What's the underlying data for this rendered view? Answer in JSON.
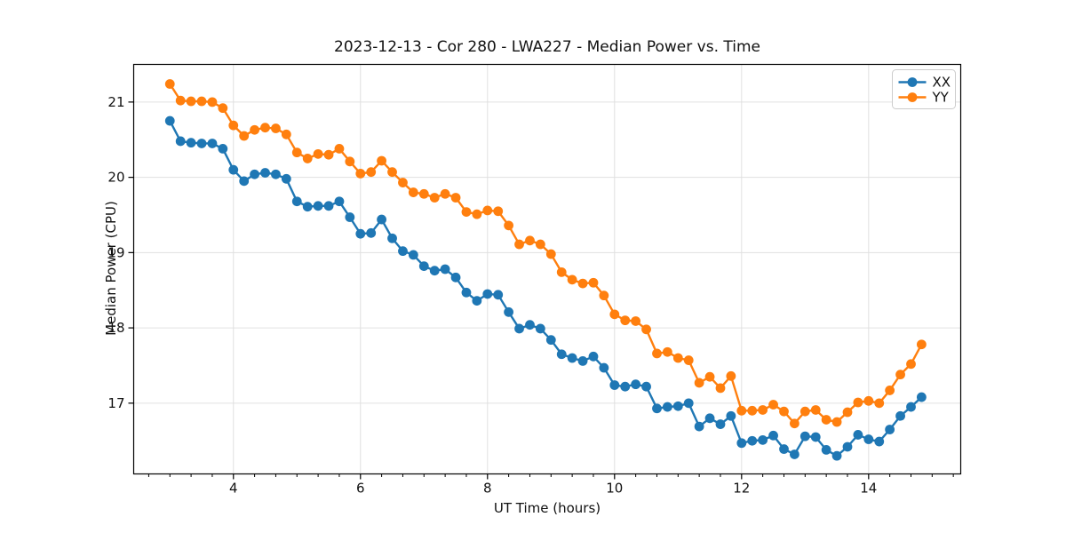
{
  "figure": {
    "background": "#ffffff"
  },
  "colors": {
    "series_xx": "#1f77b4",
    "series_yy": "#ff7f0e",
    "grid": "#e0e0e0",
    "spine": "#000000",
    "text": "#111111",
    "legend_border": "#cccccc",
    "legend_bg": "#ffffff"
  },
  "chart_data": {
    "type": "line",
    "title": "2023-12-13 - Cor 280 - LWA227 - Median Power vs. Time",
    "xlabel": "UT Time (hours)",
    "ylabel": "Median Power (CPU)",
    "xlim": [
      2.43,
      15.45
    ],
    "ylim": [
      16.06,
      21.5
    ],
    "xticks": [
      4,
      6,
      8,
      10,
      12,
      14
    ],
    "yticks": [
      17,
      18,
      19,
      20,
      21
    ],
    "x_minor_step": 0.3333,
    "grid": true,
    "legend_position": "upper right",
    "marker": "circle",
    "x": [
      3.0,
      3.167,
      3.333,
      3.5,
      3.667,
      3.833,
      4.0,
      4.167,
      4.333,
      4.5,
      4.667,
      4.833,
      5.0,
      5.167,
      5.333,
      5.5,
      5.667,
      5.833,
      6.0,
      6.167,
      6.333,
      6.5,
      6.667,
      6.833,
      7.0,
      7.167,
      7.333,
      7.5,
      7.667,
      7.833,
      8.0,
      8.167,
      8.333,
      8.5,
      8.667,
      8.833,
      9.0,
      9.167,
      9.333,
      9.5,
      9.667,
      9.833,
      10.0,
      10.167,
      10.333,
      10.5,
      10.667,
      10.833,
      11.0,
      11.167,
      11.333,
      11.5,
      11.667,
      11.833,
      12.0,
      12.167,
      12.333,
      12.5,
      12.667,
      12.833,
      13.0,
      13.167,
      13.333,
      13.5,
      13.667,
      13.833,
      14.0,
      14.167,
      14.333,
      14.5,
      14.667,
      14.833
    ],
    "series": [
      {
        "name": "XX",
        "color": "#1f77b4",
        "values": [
          20.75,
          20.48,
          20.46,
          20.45,
          20.45,
          20.38,
          20.1,
          19.95,
          20.04,
          20.06,
          20.04,
          19.98,
          19.68,
          19.61,
          19.62,
          19.62,
          19.68,
          19.47,
          19.25,
          19.26,
          19.44,
          19.19,
          19.02,
          18.97,
          18.82,
          18.76,
          18.78,
          18.67,
          18.47,
          18.36,
          18.45,
          18.44,
          18.21,
          17.99,
          18.04,
          17.99,
          17.84,
          17.65,
          17.6,
          17.56,
          17.62,
          17.47,
          17.24,
          17.22,
          17.25,
          17.22,
          16.93,
          16.95,
          16.96,
          17.0,
          16.69,
          16.8,
          16.72,
          16.83,
          16.47,
          16.5,
          16.51,
          16.57,
          16.39,
          16.32,
          16.56,
          16.55,
          16.38,
          16.3,
          16.42,
          16.58,
          16.52,
          16.49,
          16.65,
          16.83,
          16.95,
          17.08
        ]
      },
      {
        "name": "YY",
        "color": "#ff7f0e",
        "values": [
          21.24,
          21.02,
          21.01,
          21.01,
          21.0,
          20.92,
          20.69,
          20.55,
          20.63,
          20.66,
          20.65,
          20.57,
          20.33,
          20.25,
          20.31,
          20.3,
          20.38,
          20.21,
          20.05,
          20.07,
          20.22,
          20.07,
          19.93,
          19.8,
          19.78,
          19.73,
          19.78,
          19.73,
          19.54,
          19.51,
          19.56,
          19.55,
          19.36,
          19.11,
          19.16,
          19.11,
          18.98,
          18.74,
          18.64,
          18.59,
          18.6,
          18.43,
          18.18,
          18.1,
          18.09,
          17.98,
          17.66,
          17.68,
          17.6,
          17.57,
          17.27,
          17.35,
          17.2,
          17.36,
          16.9,
          16.9,
          16.91,
          16.98,
          16.89,
          16.73,
          16.89,
          16.91,
          16.78,
          16.75,
          16.88,
          17.01,
          17.03,
          17.0,
          17.17,
          17.38,
          17.52,
          17.78
        ]
      }
    ]
  }
}
